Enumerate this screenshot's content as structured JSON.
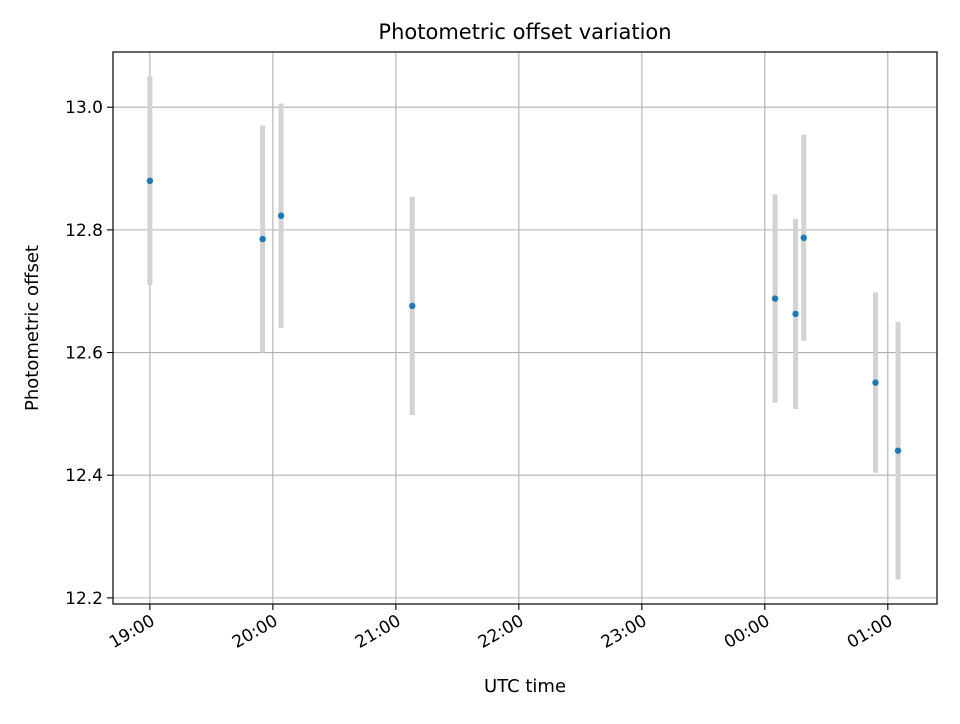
{
  "chart_data": {
    "type": "scatter",
    "title": "Photometric offset variation",
    "xlabel": "UTC time",
    "ylabel": "Photometric offset",
    "x_ticks": [
      "19:00",
      "20:00",
      "21:00",
      "22:00",
      "23:00",
      "00:00",
      "01:00"
    ],
    "y_ticks": [
      "12.2",
      "12.4",
      "12.6",
      "12.8",
      "13.0"
    ],
    "xlim": [
      "18:42",
      "01:24"
    ],
    "ylim": [
      12.19,
      13.09
    ],
    "grid": true,
    "marker_color": "#1f77b4",
    "errorbar_color": "#d3d3d3",
    "series": [
      {
        "x": [
          "19:00",
          "19:55",
          "20:04",
          "21:08",
          "00:05",
          "00:15",
          "00:19",
          "00:54",
          "01:05"
        ],
        "y": [
          12.88,
          12.785,
          12.823,
          12.676,
          12.688,
          12.663,
          12.787,
          12.551,
          12.44
        ],
        "yerr": [
          0.17,
          0.185,
          0.183,
          0.178,
          0.17,
          0.155,
          0.168,
          0.147,
          0.21
        ]
      }
    ]
  }
}
